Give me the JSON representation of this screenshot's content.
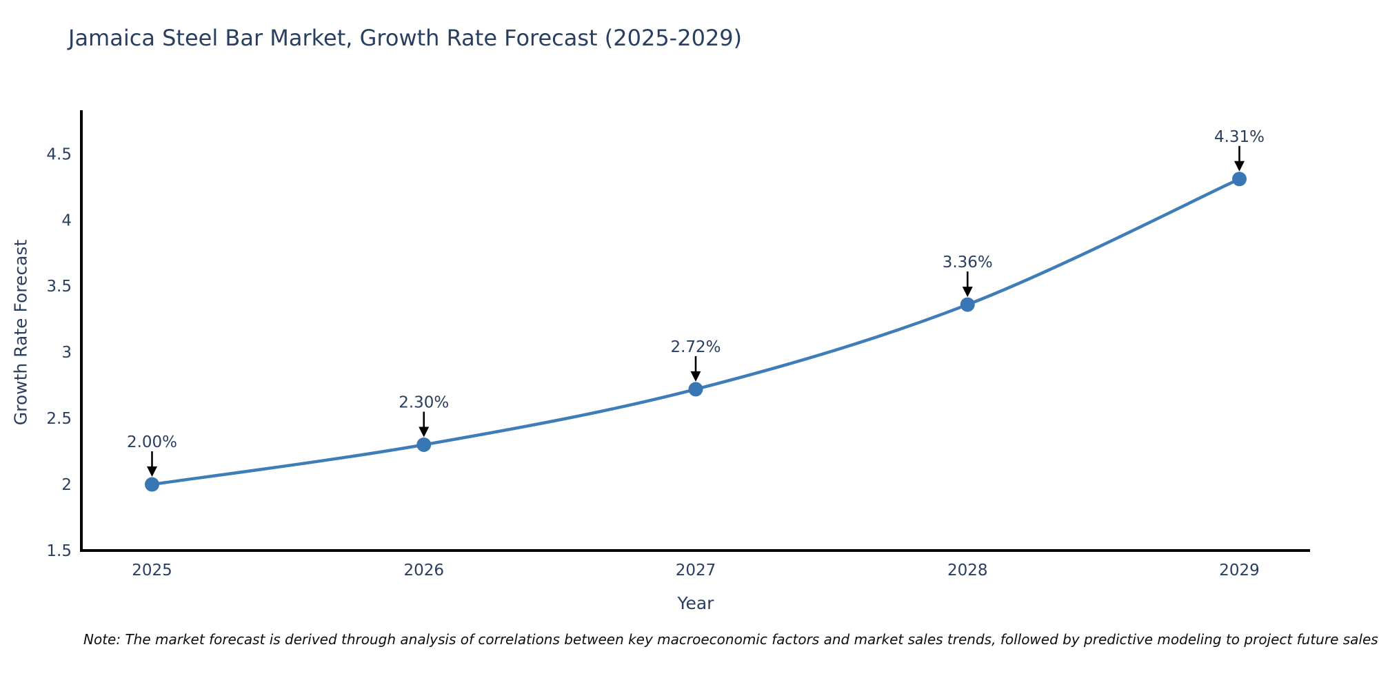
{
  "title": "Jamaica Steel Bar Market, Growth Rate Forecast (2025-2029)",
  "note": "Note: The market forecast is derived through analysis of correlations between key macroeconomic factors and market sales trends, followed by predictive modeling to project future sales",
  "chart_data": {
    "type": "line",
    "title": "Jamaica Steel Bar Market, Growth Rate Forecast (2025-2029)",
    "xlabel": "Year",
    "ylabel": "Growth Rate Forecast",
    "x": [
      2025,
      2026,
      2027,
      2028,
      2029
    ],
    "values": [
      2.0,
      2.3,
      2.72,
      3.36,
      4.31
    ],
    "point_labels": [
      "2.00%",
      "2.30%",
      "2.72%",
      "3.36%",
      "4.31%"
    ],
    "x_tick_labels": [
      "2025",
      "2026",
      "2027",
      "2028",
      "2029"
    ],
    "y_ticks": [
      1.5,
      2,
      2.5,
      3,
      3.5,
      4,
      4.5
    ],
    "y_tick_labels": [
      "1.5",
      "2",
      "2.5",
      "3",
      "3.5",
      "4",
      "4.5"
    ],
    "xlim": [
      2024.74,
      2029.26
    ],
    "ylim": [
      1.5,
      4.83
    ],
    "grid": false,
    "legend": "none",
    "line_shape": "spline",
    "marker": "circle",
    "annotations_arrow": "down",
    "colors": {
      "line": "#3e7db8",
      "marker": "#3876b4",
      "axis": "#000000",
      "tick_text": "#2a3f5f",
      "annotation_text": "#2a3f5f",
      "arrow": "#000000",
      "title_text": "#2a3f5f",
      "note_text": "#0d0d0d",
      "background": "#ffffff"
    }
  }
}
